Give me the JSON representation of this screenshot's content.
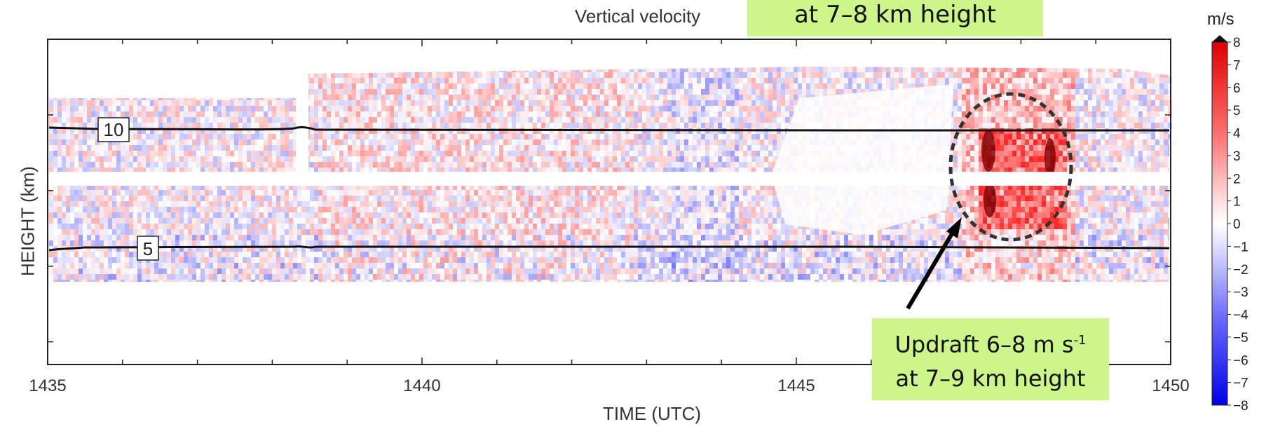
{
  "chart_data": {
    "type": "heatmap",
    "title": "Vertical velocity",
    "title_highlight": "at 7–8 km height",
    "xlabel": "TIME (UTC)",
    "ylabel": "HEIGHT (km)",
    "x_ticks": [
      "1435",
      "1440",
      "1445",
      "1450"
    ],
    "xlim": [
      1435,
      1450
    ],
    "colorbar": {
      "unit": "m/s",
      "range": [
        -8,
        8
      ],
      "ticks": [
        "8",
        "7",
        "6",
        "5",
        "4",
        "3",
        "2",
        "1",
        "0",
        "−1",
        "−2",
        "−3",
        "−4",
        "−5",
        "−6",
        "−7",
        "−8"
      ],
      "colors": {
        "positive": "#ff0000",
        "zero": "#ffffff",
        "negative": "#0000ff"
      }
    },
    "contour_labels": [
      "10",
      "5"
    ],
    "annotation": {
      "line1": "Updraft 6–8 m s",
      "superscript": "-1",
      "line2": "at 7–9 km height"
    },
    "highlight_color": "#ccf58a"
  }
}
